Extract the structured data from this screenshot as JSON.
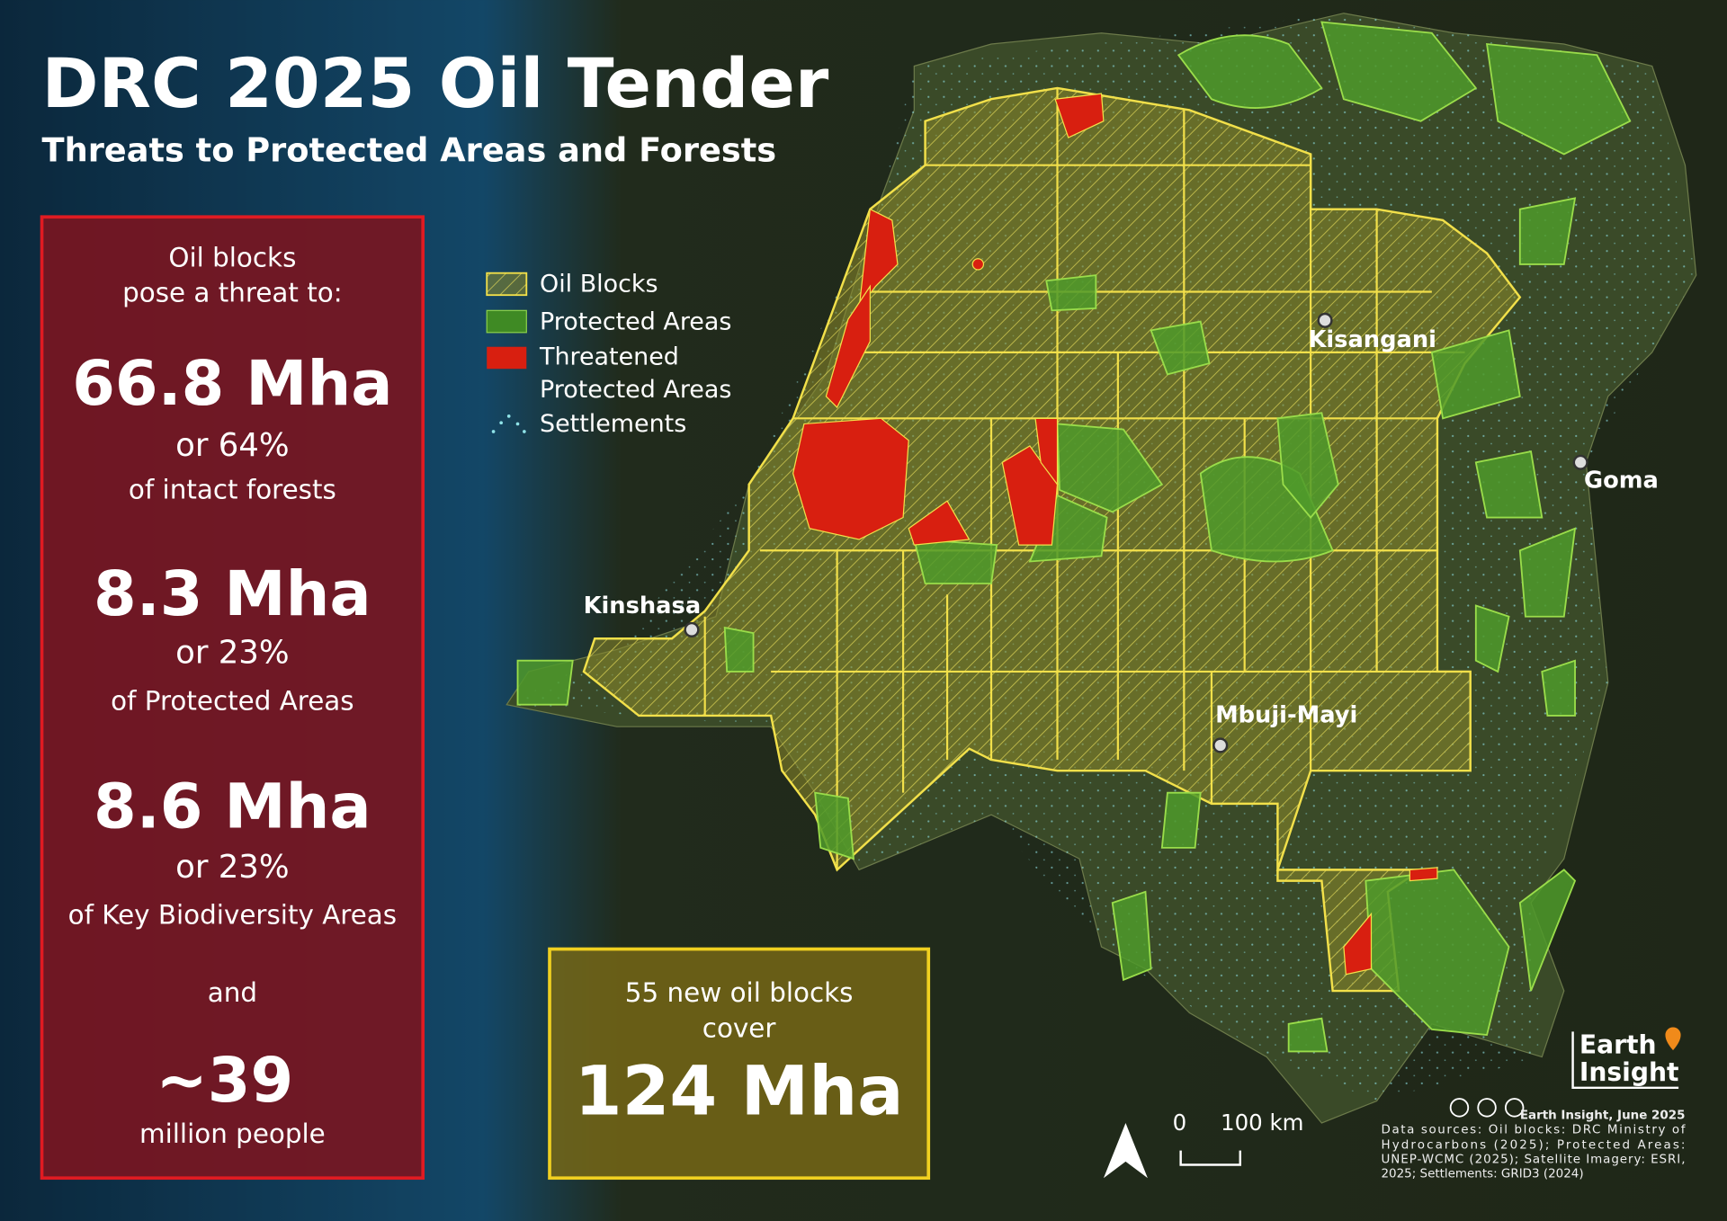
{
  "header": {
    "title": "DRC 2025 Oil Tender",
    "subtitle": "Threats to Protected Areas and Forests"
  },
  "threat_panel": {
    "intro": [
      "Oil blocks",
      "pose a threat to:"
    ],
    "stats": [
      {
        "value": "66.8 Mha",
        "share": "or 64%",
        "of": "of intact forests"
      },
      {
        "value": "8.3 Mha",
        "share": "or 23%",
        "of": "of Protected Areas"
      },
      {
        "value": "8.6 Mha",
        "share": "or 23%",
        "of": "of Key Biodiversity Areas"
      }
    ],
    "connector": "and",
    "people": {
      "value": "~39",
      "label": "million people"
    }
  },
  "legend": {
    "items": [
      {
        "label": [
          "Oil Blocks"
        ]
      },
      {
        "label": [
          "Protected Areas"
        ]
      },
      {
        "label": [
          "Threatened",
          "Protected Areas"
        ]
      },
      {
        "label": [
          "Settlements"
        ]
      }
    ]
  },
  "cities": [
    {
      "name": "Kisangani"
    },
    {
      "name": "Goma"
    },
    {
      "name": "Kinshasa"
    },
    {
      "name": "Mbuji-Mayi"
    }
  ],
  "callout": {
    "text": [
      "55 new oil blocks",
      "cover"
    ],
    "value": "124 Mha"
  },
  "scale_bar": {
    "zero": "0",
    "distance": "100 km"
  },
  "logo": [
    "Earth",
    "Insight"
  ],
  "credits": {
    "byline": "Earth Insight, June 2025",
    "sources": [
      "Data sources: Oil blocks: DRC Ministry of",
      "Hydrocarbons (2025); Protected Areas:",
      "UNEP-WCMC (2025); Satellite Imagery: ESRI,",
      "2025; Settlements: GRID3 (2024)"
    ]
  }
}
